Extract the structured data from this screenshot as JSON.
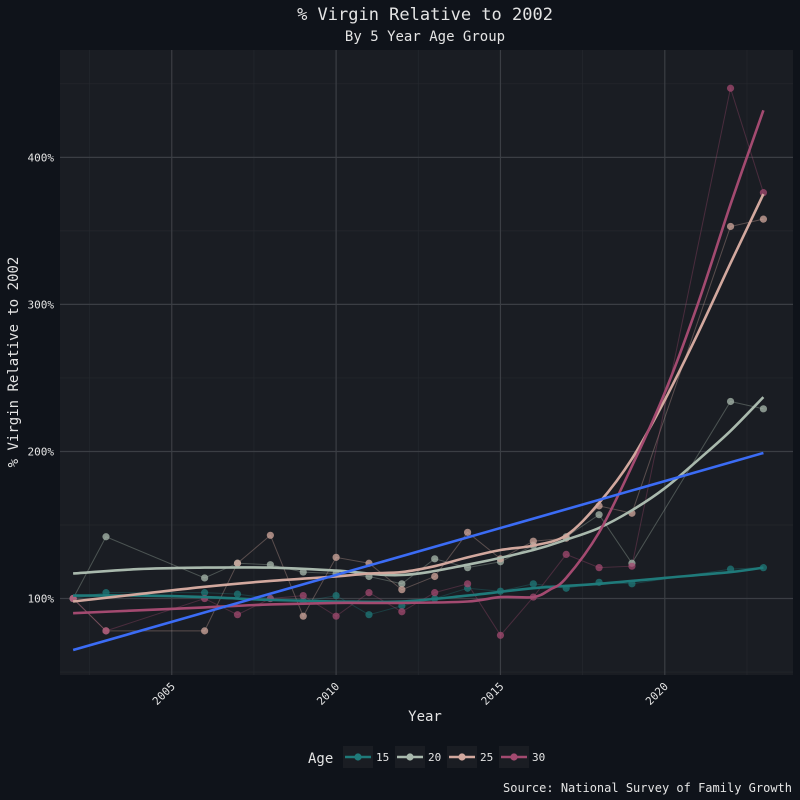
{
  "chart_data": {
    "type": "line",
    "title": "% Virgin Relative to 2002",
    "subtitle": "By 5 Year Age Group",
    "xlabel": "Year",
    "ylabel": "% Virgin Relative to 2002",
    "caption": "Source: National Survey of Family Growth",
    "legend_title": "Age",
    "legend_position": "bottom",
    "xlim": [
      2001.6,
      2023.9
    ],
    "ylim": [
      48,
      473
    ],
    "x_ticks": [
      2005,
      2010,
      2015,
      2020
    ],
    "x_tick_labels": [
      "2005",
      "2010",
      "2015",
      "2020"
    ],
    "y_ticks": [
      100,
      200,
      300,
      400
    ],
    "y_tick_labels": [
      "100%",
      "200%",
      "300%",
      "400%"
    ],
    "grid": true,
    "colors": {
      "background": "#0f131a",
      "panel": "#1a1d23",
      "grid_major": "#3b3e44",
      "grid_minor": "#25282e",
      "text": "#e4e4e4",
      "trend": "#3b6cf5"
    },
    "series": [
      {
        "name": "15",
        "color": "#1f7a7a",
        "points": [
          [
            2002,
            100
          ],
          [
            2003,
            104
          ],
          [
            2006,
            104
          ],
          [
            2007,
            103
          ],
          [
            2008,
            100
          ],
          [
            2009,
            98
          ],
          [
            2010,
            102
          ],
          [
            2011,
            89
          ],
          [
            2012,
            95
          ],
          [
            2013,
            100
          ],
          [
            2014,
            107
          ],
          [
            2015,
            105
          ],
          [
            2016,
            110
          ],
          [
            2017,
            107
          ],
          [
            2018,
            111
          ],
          [
            2019,
            110
          ],
          [
            2022,
            120
          ],
          [
            2023,
            121
          ]
        ],
        "smooth": [
          [
            2002,
            102
          ],
          [
            2004,
            102
          ],
          [
            2006,
            101
          ],
          [
            2008,
            99
          ],
          [
            2010,
            98
          ],
          [
            2012,
            98
          ],
          [
            2014,
            102
          ],
          [
            2016,
            107
          ],
          [
            2018,
            110
          ],
          [
            2020,
            114
          ],
          [
            2022,
            118
          ],
          [
            2023,
            121
          ]
        ]
      },
      {
        "name": "20",
        "color": "#a9b9ad",
        "points": [
          [
            2002,
            100
          ],
          [
            2003,
            142
          ],
          [
            2006,
            114
          ],
          [
            2007,
            124
          ],
          [
            2008,
            123
          ],
          [
            2009,
            118
          ],
          [
            2010,
            117
          ],
          [
            2011,
            115
          ],
          [
            2012,
            110
          ],
          [
            2013,
            127
          ],
          [
            2014,
            121
          ],
          [
            2015,
            125
          ],
          [
            2016,
            136
          ],
          [
            2017,
            142
          ],
          [
            2018,
            157
          ],
          [
            2019,
            124
          ],
          [
            2022,
            234
          ],
          [
            2023,
            229
          ]
        ],
        "smooth": [
          [
            2002,
            117
          ],
          [
            2004,
            120
          ],
          [
            2006,
            121
          ],
          [
            2008,
            121
          ],
          [
            2010,
            119
          ],
          [
            2012,
            116
          ],
          [
            2014,
            123
          ],
          [
            2016,
            133
          ],
          [
            2017,
            140
          ],
          [
            2018,
            148
          ],
          [
            2019,
            160
          ],
          [
            2020,
            175
          ],
          [
            2021,
            194
          ],
          [
            2022,
            214
          ],
          [
            2023,
            237
          ]
        ]
      },
      {
        "name": "25",
        "color": "#d2a89e",
        "points": [
          [
            2002,
            100
          ],
          [
            2003,
            78
          ],
          [
            2006,
            78
          ],
          [
            2007,
            124
          ],
          [
            2008,
            143
          ],
          [
            2009,
            88
          ],
          [
            2010,
            128
          ],
          [
            2011,
            124
          ],
          [
            2012,
            106
          ],
          [
            2013,
            115
          ],
          [
            2014,
            145
          ],
          [
            2015,
            127
          ],
          [
            2016,
            139
          ],
          [
            2017,
            141
          ],
          [
            2018,
            163
          ],
          [
            2019,
            158
          ],
          [
            2022,
            353
          ],
          [
            2023,
            358
          ]
        ],
        "smooth": [
          [
            2002,
            98
          ],
          [
            2004,
            103
          ],
          [
            2006,
            108
          ],
          [
            2008,
            112
          ],
          [
            2010,
            115
          ],
          [
            2011,
            117
          ],
          [
            2012,
            118
          ],
          [
            2013,
            122
          ],
          [
            2014,
            128
          ],
          [
            2015,
            133
          ],
          [
            2016,
            136
          ],
          [
            2017,
            143
          ],
          [
            2018,
            165
          ],
          [
            2019,
            195
          ],
          [
            2020,
            235
          ],
          [
            2021,
            280
          ],
          [
            2022,
            328
          ],
          [
            2023,
            375
          ]
        ]
      },
      {
        "name": "30",
        "color": "#a34a70",
        "points": [
          [
            2002,
            100
          ],
          [
            2003,
            78
          ],
          [
            2006,
            100
          ],
          [
            2007,
            89
          ],
          [
            2008,
            100
          ],
          [
            2009,
            102
          ],
          [
            2010,
            88
          ],
          [
            2011,
            104
          ],
          [
            2012,
            91
          ],
          [
            2013,
            104
          ],
          [
            2014,
            110
          ],
          [
            2015,
            75
          ],
          [
            2016,
            101
          ],
          [
            2017,
            130
          ],
          [
            2018,
            121
          ],
          [
            2019,
            122
          ],
          [
            2022,
            447
          ],
          [
            2023,
            376
          ]
        ],
        "smooth": [
          [
            2002,
            90
          ],
          [
            2004,
            92
          ],
          [
            2006,
            94
          ],
          [
            2008,
            96
          ],
          [
            2010,
            97
          ],
          [
            2012,
            97
          ],
          [
            2014,
            98
          ],
          [
            2015,
            101
          ],
          [
            2016,
            101
          ],
          [
            2016.5,
            106
          ],
          [
            2017,
            114
          ],
          [
            2018,
            145
          ],
          [
            2019,
            190
          ],
          [
            2020,
            240
          ],
          [
            2021,
            300
          ],
          [
            2022,
            368
          ],
          [
            2023,
            432
          ]
        ]
      }
    ],
    "trend_line": {
      "points": [
        [
          2002,
          65
        ],
        [
          2023,
          199
        ]
      ]
    }
  }
}
